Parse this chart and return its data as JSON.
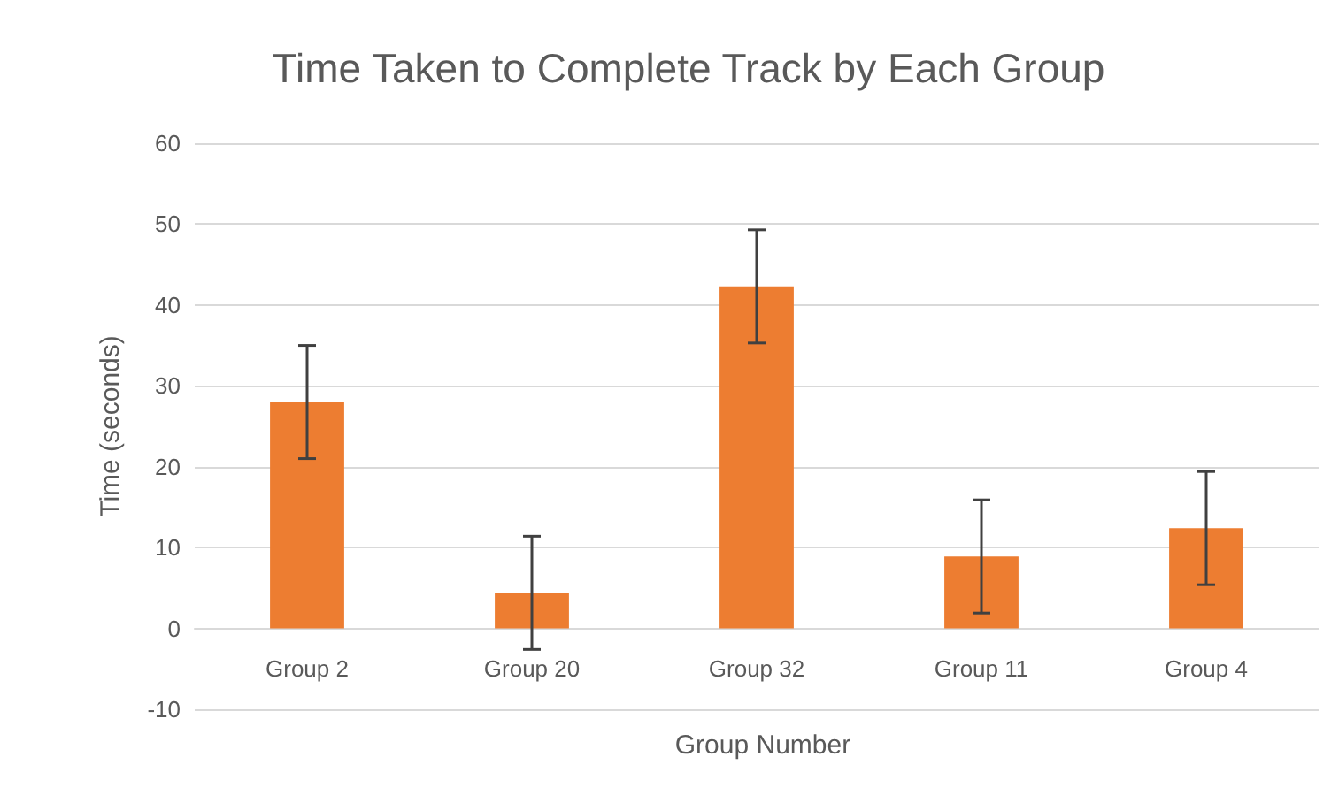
{
  "chart_data": {
    "type": "bar",
    "title": "Time Taken to Complete Track by Each Group",
    "xlabel": "Group Number",
    "ylabel": "Time (seconds)",
    "categories": [
      "Group 2",
      "Group 20",
      "Group 32",
      "Group 11",
      "Group 4"
    ],
    "values": [
      28,
      4.4,
      42.3,
      8.9,
      12.4
    ],
    "errors": [
      7,
      7,
      7,
      7,
      7
    ],
    "color": "#ed7d31",
    "ylim": [
      -10,
      60
    ],
    "yticks": [
      -10,
      0,
      10,
      20,
      30,
      40,
      50,
      60
    ],
    "grid": "y"
  }
}
